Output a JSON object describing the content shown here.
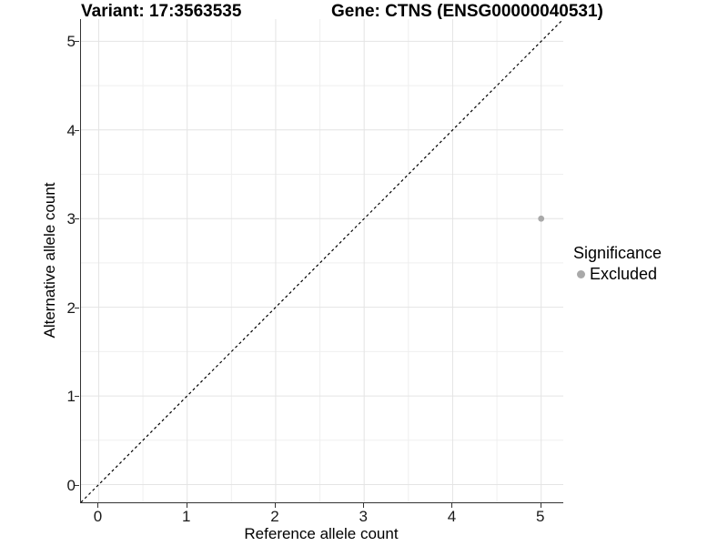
{
  "chart_data": {
    "type": "scatter",
    "titles": {
      "variant": "Variant: 17:3563535",
      "gene": "Gene: CTNS (ENSG00000040531)"
    },
    "xlabel": "Reference allele count",
    "ylabel": "Alternative allele count",
    "xlim": [
      -0.2,
      5.25
    ],
    "ylim": [
      -0.2,
      5.25
    ],
    "xticks": [
      0,
      1,
      2,
      3,
      4,
      5
    ],
    "yticks": [
      0,
      1,
      2,
      3,
      4,
      5
    ],
    "minor_grid": true,
    "grid": true,
    "points": [
      {
        "x": 5,
        "y": 3,
        "series": "Excluded"
      }
    ],
    "identity_line": {
      "description": "dashed y = x reference line, corner to corner",
      "from": [
        -0.2,
        -0.2
      ],
      "to": [
        5.25,
        5.25
      ],
      "style": "dashed"
    },
    "legend": {
      "title": "Significance",
      "position": "right",
      "items": [
        {
          "label": "Excluded",
          "color": "#a9a9a9"
        }
      ]
    },
    "colors": {
      "point": "#a9a9a9",
      "identity_line": "#000000",
      "major_grid": "#e4e4e4",
      "minor_grid": "#efefef",
      "axis_line": "#333333",
      "text": "#000000"
    }
  }
}
